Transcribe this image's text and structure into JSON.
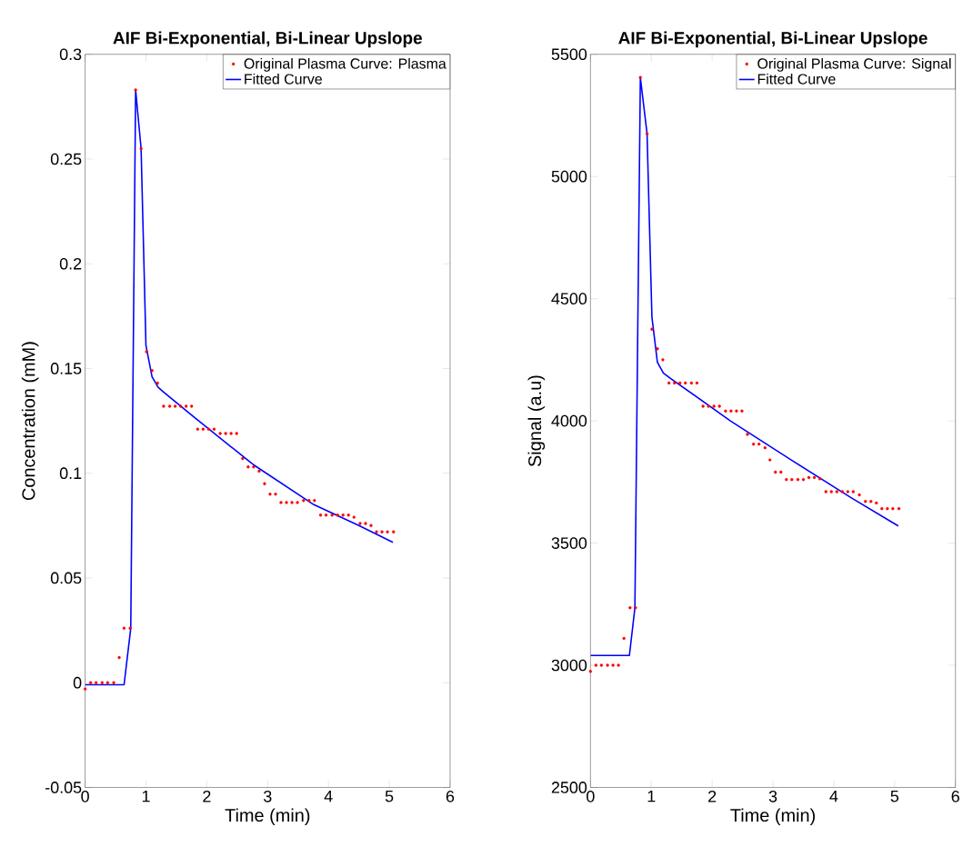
{
  "chart_data": [
    {
      "type": "line",
      "title": "AIF Bi-Exponential, Bi-Linear Upslope",
      "xlabel": "Time (min)",
      "ylabel": "Concentration (mM)",
      "xlim": [
        0,
        6
      ],
      "xticks": [
        0,
        1,
        2,
        3,
        4,
        5,
        6
      ],
      "ylim": [
        -0.05,
        0.3
      ],
      "yticks": [
        -0.05,
        0,
        0.05,
        0.1,
        0.15,
        0.2,
        0.25,
        0.3
      ],
      "legend": "top right",
      "series": [
        {
          "name": "Original Plasma Curve: Plasma",
          "type": "scatter",
          "marker": "circle",
          "color": "#ff0000",
          "x": [
            0,
            0.09,
            0.18,
            0.28,
            0.37,
            0.47,
            0.56,
            0.64,
            0.74,
            0.83,
            0.92,
            1.01,
            1.1,
            1.19,
            1.29,
            1.39,
            1.48,
            1.57,
            1.66,
            1.75,
            1.85,
            1.94,
            2.03,
            2.12,
            2.22,
            2.31,
            2.4,
            2.49,
            2.59,
            2.68,
            2.77,
            2.86,
            2.95,
            3.04,
            3.13,
            3.22,
            3.31,
            3.4,
            3.49,
            3.59,
            3.68,
            3.77,
            3.87,
            3.96,
            4.06,
            4.15,
            4.24,
            4.33,
            4.42,
            4.52,
            4.61,
            4.7,
            4.79,
            4.88,
            4.97,
            5.07
          ],
          "values": [
            -0.003,
            0,
            0,
            0,
            0,
            0,
            0.012,
            0.026,
            0.026,
            0.283,
            0.255,
            0.158,
            0.149,
            0.143,
            0.132,
            0.132,
            0.132,
            0.132,
            0.132,
            0.132,
            0.121,
            0.121,
            0.121,
            0.121,
            0.119,
            0.119,
            0.119,
            0.119,
            0.107,
            0.103,
            0.103,
            0.101,
            0.095,
            0.09,
            0.09,
            0.086,
            0.086,
            0.086,
            0.086,
            0.087,
            0.087,
            0.087,
            0.08,
            0.08,
            0.08,
            0.08,
            0.08,
            0.08,
            0.079,
            0.076,
            0.076,
            0.075,
            0.072,
            0.072,
            0.072,
            0.072
          ]
        },
        {
          "name": "Fitted Curve",
          "type": "line",
          "marker": "none",
          "line_style": "solid",
          "color": "#0000ff",
          "x": [
            0,
            0.64,
            0.75,
            0.83,
            0.92,
            1.0,
            1.1,
            1.2,
            1.28,
            1.78,
            2.77,
            3.76,
            4.5,
            5.06
          ],
          "values": [
            -0.001,
            -0.001,
            0.026,
            0.283,
            0.255,
            0.161,
            0.146,
            0.141,
            0.139,
            0.127,
            0.104,
            0.085,
            0.075,
            0.067
          ]
        }
      ]
    },
    {
      "type": "line",
      "title": "AIF Bi-Exponential, Bi-Linear Upslope",
      "xlabel": "Time (min)",
      "ylabel": "Signal (a.u)",
      "xlim": [
        0,
        6
      ],
      "xticks": [
        0,
        1,
        2,
        3,
        4,
        5,
        6
      ],
      "ylim": [
        2500,
        5500
      ],
      "yticks": [
        2500,
        3000,
        3500,
        4000,
        4500,
        5000,
        5500
      ],
      "legend": "top right",
      "series": [
        {
          "name": "Original Plasma Curve: Signal",
          "type": "scatter",
          "marker": "circle",
          "color": "#ff0000",
          "x": [
            0,
            0.09,
            0.18,
            0.28,
            0.37,
            0.46,
            0.55,
            0.65,
            0.74,
            0.82,
            0.93,
            1.01,
            1.1,
            1.19,
            1.29,
            1.38,
            1.47,
            1.56,
            1.66,
            1.75,
            1.85,
            1.94,
            2.03,
            2.12,
            2.22,
            2.31,
            2.4,
            2.49,
            2.58,
            2.68,
            2.77,
            2.87,
            2.95,
            3.04,
            3.13,
            3.22,
            3.31,
            3.41,
            3.5,
            3.59,
            3.68,
            3.77,
            3.87,
            3.96,
            4.05,
            4.14,
            4.23,
            4.32,
            4.42,
            4.52,
            4.61,
            4.7,
            4.79,
            4.88,
            4.97,
            5.07
          ],
          "values": [
            2975,
            3000,
            3000,
            3000,
            3000,
            3000,
            3110,
            3235,
            3235,
            5405,
            5175,
            4375,
            4295,
            4250,
            4155,
            4155,
            4155,
            4155,
            4155,
            4155,
            4060,
            4060,
            4060,
            4060,
            4040,
            4040,
            4040,
            4040,
            3945,
            3905,
            3905,
            3890,
            3840,
            3790,
            3790,
            3760,
            3760,
            3760,
            3760,
            3768,
            3768,
            3763,
            3710,
            3710,
            3710,
            3710,
            3710,
            3710,
            3697,
            3670,
            3670,
            3664,
            3641,
            3641,
            3641,
            3641
          ]
        },
        {
          "name": "Fitted Curve",
          "type": "line",
          "marker": "none",
          "line_style": "solid",
          "color": "#0000ff",
          "x": [
            0,
            0.64,
            0.73,
            0.82,
            0.93,
            1.01,
            1.1,
            1.2,
            1.31,
            2.3,
            3.3,
            4.29,
            5.06
          ],
          "values": [
            3040,
            3040,
            3235,
            5405,
            5175,
            4425,
            4240,
            4195,
            4175,
            4000,
            3840,
            3685,
            3570
          ]
        }
      ]
    }
  ]
}
